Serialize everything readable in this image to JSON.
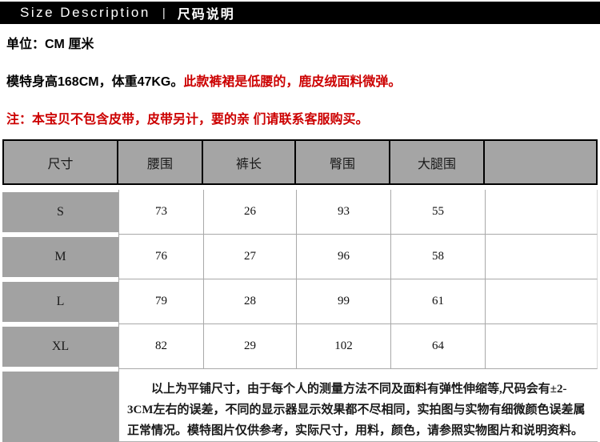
{
  "header": {
    "title_en": "Size Description",
    "separator": "|",
    "title_zh": "尺码说明"
  },
  "notes": {
    "unit_line": "单位：CM 厘米",
    "model_line_black": "模特身高168CM，体重47KG。",
    "model_line_red": "此款裤裙是低腰的，鹿皮绒面料微弹。",
    "warning_line": "注：本宝贝不包含皮带，皮带另计，要的亲 们请联系客服购买。"
  },
  "table": {
    "columns": [
      "尺寸",
      "腰围",
      "裤长",
      "臀围",
      "大腿围",
      ""
    ],
    "rows": [
      {
        "size": "S",
        "waist": "73",
        "length": "26",
        "hip": "93",
        "thigh": "55"
      },
      {
        "size": "M",
        "waist": "76",
        "length": "27",
        "hip": "96",
        "thigh": "58"
      },
      {
        "size": "L",
        "waist": "79",
        "length": "28",
        "hip": "99",
        "thigh": "61"
      },
      {
        "size": "XL",
        "waist": "82",
        "length": "29",
        "hip": "102",
        "thigh": "64"
      }
    ],
    "footer_note": "以上为平铺尺寸，由于每个人的测量方法不同及面料有弹性伸缩等,尺码会有±2-3CM左右的误差，不同的显示器显示效果都不尽相同，实拍图与实物有细微颜色误差属正常情况。模特图片仅供参考，实际尺寸，用料，颜色，请参照实物图片和说明资料。"
  },
  "colors": {
    "accent_red": "#cc0000",
    "title_bar_bg": "#000000",
    "table_header_bg": "#a5a5a5",
    "label_cell_bg": "#a2a2a2",
    "header_border": "#000000",
    "grid_border": "#a9a9a9"
  }
}
